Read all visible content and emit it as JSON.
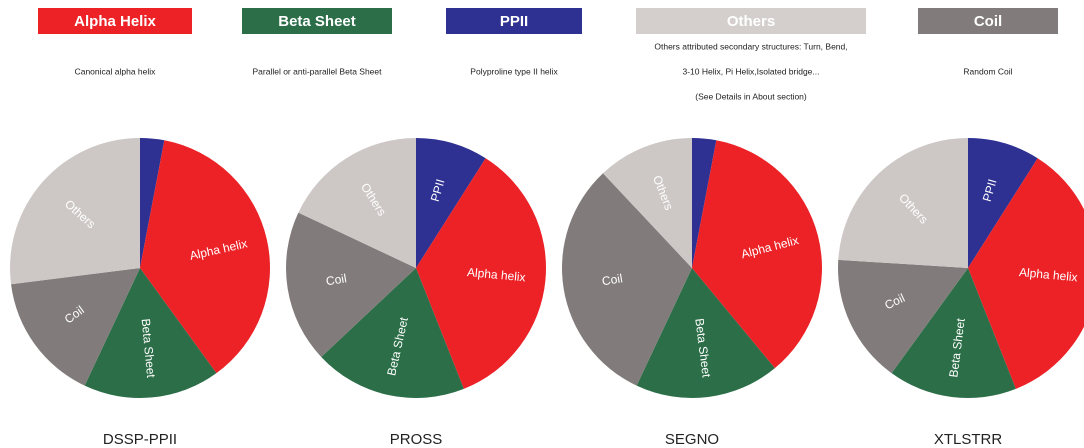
{
  "legend": [
    {
      "label": "Alpha Helix",
      "color": "#ec2227",
      "description": [
        "Canonical alpha helix"
      ]
    },
    {
      "label": "Beta Sheet",
      "color": "#2b6e47",
      "description": [
        "Parallel or anti-parallel Beta Sheet"
      ]
    },
    {
      "label": "PPII",
      "color": "#2e3192",
      "description": [
        "Polyproline type II helix"
      ]
    },
    {
      "label": "Others",
      "color": "#d4cfcd",
      "description": [
        "Others attributed secondary structures: Turn, Bend,",
        "3-10 Helix, Pi Helix,Isolated bridge...",
        "(See Details in About section)"
      ]
    },
    {
      "label": "Coil",
      "color": "#817c7b",
      "description": [
        "Random Coil"
      ]
    }
  ],
  "chart_data": [
    {
      "type": "pie",
      "title": "DSSP-PPII",
      "categories": [
        null,
        "Alpha helix",
        "Beta Sheet",
        "Coil",
        "Others"
      ],
      "values": [
        3,
        37,
        17,
        16,
        27
      ],
      "colors": [
        "#2e3192",
        "#ec2227",
        "#2b6e47",
        "#817c7b",
        "#cdc8c6"
      ]
    },
    {
      "type": "pie",
      "title": "PROSS",
      "categories": [
        "PPII",
        "Alpha helix",
        "Beta Sheet",
        "Coil",
        "Others"
      ],
      "values": [
        9,
        35,
        19,
        19,
        18
      ],
      "colors": [
        "#2e3192",
        "#ec2227",
        "#2b6e47",
        "#817c7b",
        "#cdc8c6"
      ]
    },
    {
      "type": "pie",
      "title": "SEGNO",
      "categories": [
        null,
        "Alpha helix",
        "Beta Sheet",
        "Coil",
        "Others"
      ],
      "values": [
        3,
        36,
        18,
        31,
        12
      ],
      "colors": [
        "#2e3192",
        "#ec2227",
        "#2b6e47",
        "#817c7b",
        "#cdc8c6"
      ]
    },
    {
      "type": "pie",
      "title": "XTLSTRR",
      "categories": [
        "PPII",
        "Alpha helix",
        "Beta Sheet",
        "Coil",
        "Others"
      ],
      "values": [
        9,
        35,
        16,
        16,
        24
      ],
      "colors": [
        "#2e3192",
        "#ec2227",
        "#2b6e47",
        "#817c7b",
        "#cdc8c6"
      ]
    }
  ]
}
